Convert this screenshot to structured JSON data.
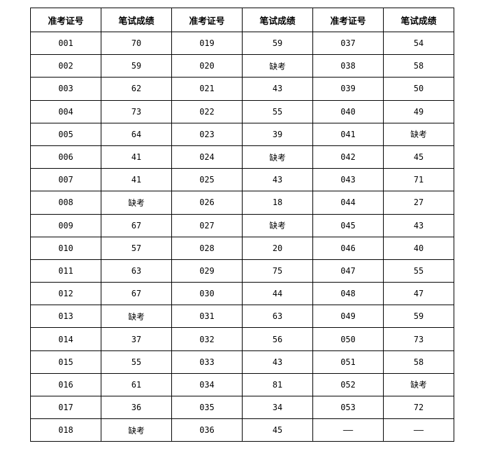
{
  "table": {
    "headers": [
      "准考证号",
      "笔试成绩",
      "准考证号",
      "笔试成绩",
      "准考证号",
      "笔试成绩"
    ],
    "rows": [
      [
        "001",
        "70",
        "019",
        "59",
        "037",
        "54"
      ],
      [
        "002",
        "59",
        "020",
        "缺考",
        "038",
        "58"
      ],
      [
        "003",
        "62",
        "021",
        "43",
        "039",
        "50"
      ],
      [
        "004",
        "73",
        "022",
        "55",
        "040",
        "49"
      ],
      [
        "005",
        "64",
        "023",
        "39",
        "041",
        "缺考"
      ],
      [
        "006",
        "41",
        "024",
        "缺考",
        "042",
        "45"
      ],
      [
        "007",
        "41",
        "025",
        "43",
        "043",
        "71"
      ],
      [
        "008",
        "缺考",
        "026",
        "18",
        "044",
        "27"
      ],
      [
        "009",
        "67",
        "027",
        "缺考",
        "045",
        "43"
      ],
      [
        "010",
        "57",
        "028",
        "20",
        "046",
        "40"
      ],
      [
        "011",
        "63",
        "029",
        "75",
        "047",
        "55"
      ],
      [
        "012",
        "67",
        "030",
        "44",
        "048",
        "47"
      ],
      [
        "013",
        "缺考",
        "031",
        "63",
        "049",
        "59"
      ],
      [
        "014",
        "37",
        "032",
        "56",
        "050",
        "73"
      ],
      [
        "015",
        "55",
        "033",
        "43",
        "051",
        "58"
      ],
      [
        "016",
        "61",
        "034",
        "81",
        "052",
        "缺考"
      ],
      [
        "017",
        "36",
        "035",
        "34",
        "053",
        "72"
      ],
      [
        "018",
        "缺考",
        "036",
        "45",
        "——",
        "——"
      ]
    ]
  }
}
